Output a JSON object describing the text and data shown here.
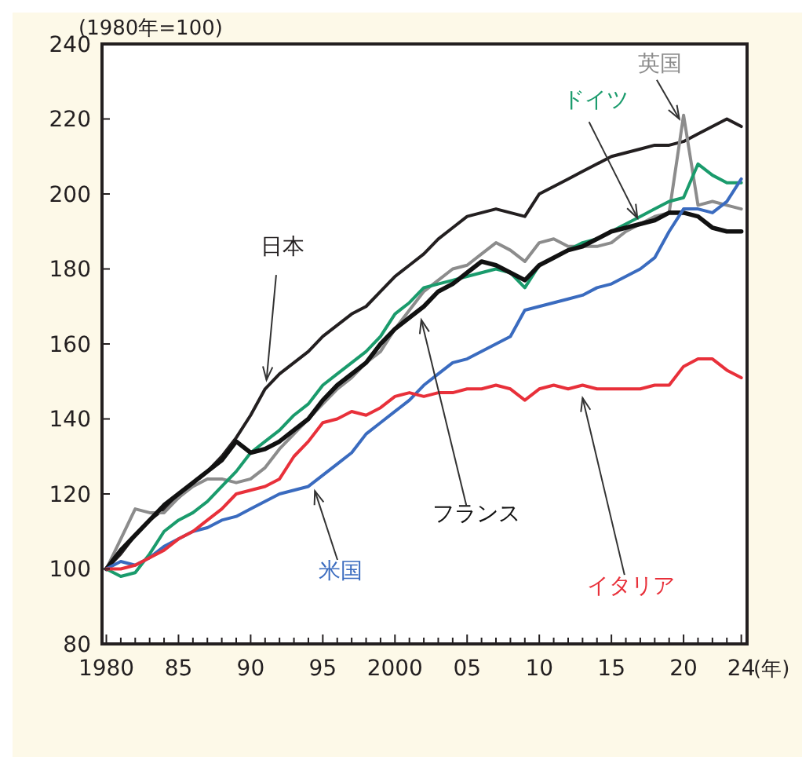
{
  "chart_data": {
    "type": "line",
    "ylabel": "(1980年=100)",
    "xlabel": "(年)",
    "x": [
      1980,
      1981,
      1982,
      1983,
      1984,
      1985,
      1986,
      1987,
      1988,
      1989,
      1990,
      1991,
      1992,
      1993,
      1994,
      1995,
      1996,
      1997,
      1998,
      1999,
      2000,
      2001,
      2002,
      2003,
      2004,
      2005,
      2006,
      2007,
      2008,
      2009,
      2010,
      2011,
      2012,
      2013,
      2014,
      2015,
      2016,
      2017,
      2018,
      2019,
      2020,
      2021,
      2022,
      2023,
      2024
    ],
    "xlim": [
      1979.7,
      2024.4
    ],
    "ylim": [
      80,
      240
    ],
    "xticks": [
      {
        "value": 1980,
        "label": "1980"
      },
      {
        "value": 1981,
        "label": null
      },
      {
        "value": 1982,
        "label": null
      },
      {
        "value": 1983,
        "label": null
      },
      {
        "value": 1984,
        "label": null
      },
      {
        "value": 1985,
        "label": "85"
      },
      {
        "value": 1986,
        "label": null
      },
      {
        "value": 1987,
        "label": null
      },
      {
        "value": 1988,
        "label": null
      },
      {
        "value": 1989,
        "label": null
      },
      {
        "value": 1990,
        "label": "90"
      },
      {
        "value": 1991,
        "label": null
      },
      {
        "value": 1992,
        "label": null
      },
      {
        "value": 1993,
        "label": null
      },
      {
        "value": 1994,
        "label": null
      },
      {
        "value": 1995,
        "label": "95"
      },
      {
        "value": 1996,
        "label": null
      },
      {
        "value": 1997,
        "label": null
      },
      {
        "value": 1998,
        "label": null
      },
      {
        "value": 1999,
        "label": null
      },
      {
        "value": 2000,
        "label": "2000"
      },
      {
        "value": 2001,
        "label": null
      },
      {
        "value": 2002,
        "label": null
      },
      {
        "value": 2003,
        "label": null
      },
      {
        "value": 2004,
        "label": null
      },
      {
        "value": 2005,
        "label": "05"
      },
      {
        "value": 2006,
        "label": null
      },
      {
        "value": 2007,
        "label": null
      },
      {
        "value": 2008,
        "label": null
      },
      {
        "value": 2009,
        "label": null
      },
      {
        "value": 2010,
        "label": "10"
      },
      {
        "value": 2011,
        "label": null
      },
      {
        "value": 2012,
        "label": null
      },
      {
        "value": 2013,
        "label": null
      },
      {
        "value": 2014,
        "label": null
      },
      {
        "value": 2015,
        "label": "15"
      },
      {
        "value": 2016,
        "label": null
      },
      {
        "value": 2017,
        "label": null
      },
      {
        "value": 2018,
        "label": null
      },
      {
        "value": 2019,
        "label": null
      },
      {
        "value": 2020,
        "label": "20"
      },
      {
        "value": 2021,
        "label": null
      },
      {
        "value": 2022,
        "label": null
      },
      {
        "value": 2023,
        "label": null
      },
      {
        "value": 2024,
        "label": "24"
      }
    ],
    "yticks": [
      80,
      100,
      120,
      140,
      160,
      180,
      200,
      220,
      240
    ],
    "grid": false,
    "legend": false,
    "series": [
      {
        "name": "日本",
        "color": "#231f20",
        "values": [
          100,
          104,
          109,
          113,
          116,
          119,
          123,
          126,
          130,
          135,
          141,
          148,
          152,
          155,
          158,
          162,
          165,
          168,
          170,
          174,
          178,
          181,
          184,
          188,
          191,
          194,
          195,
          196,
          195,
          194,
          200,
          202,
          204,
          206,
          208,
          210,
          211,
          212,
          213,
          213,
          214,
          216,
          218,
          220,
          218
        ]
      },
      {
        "name": "英国",
        "color": "#8c8c8c",
        "values": [
          100,
          108,
          116,
          115,
          115,
          119,
          122,
          124,
          124,
          123,
          124,
          127,
          132,
          136,
          140,
          144,
          148,
          151,
          155,
          158,
          164,
          169,
          174,
          177,
          180,
          181,
          184,
          187,
          185,
          182,
          187,
          188,
          186,
          186,
          186,
          187,
          190,
          192,
          194,
          195,
          221,
          197,
          198,
          197,
          196
        ]
      },
      {
        "name": "ドイツ",
        "color": "#1a9b6c",
        "values": [
          100,
          98,
          99,
          104,
          110,
          113,
          115,
          118,
          122,
          126,
          131,
          134,
          137,
          141,
          144,
          149,
          152,
          155,
          158,
          162,
          168,
          171,
          175,
          176,
          177,
          178,
          179,
          180,
          179,
          175,
          181,
          183,
          185,
          187,
          188,
          190,
          192,
          194,
          196,
          198,
          199,
          208,
          205,
          203,
          203
        ]
      },
      {
        "name": "フランス",
        "color": "#111111",
        "values": [
          100,
          105,
          109,
          113,
          117,
          120,
          123,
          126,
          129,
          134,
          131,
          132,
          134,
          137,
          140,
          145,
          149,
          152,
          155,
          160,
          164,
          167,
          170,
          174,
          176,
          179,
          182,
          181,
          179,
          177,
          181,
          183,
          185,
          186,
          188,
          190,
          191,
          192,
          193,
          195,
          195,
          194,
          191,
          190,
          190
        ]
      },
      {
        "name": "米国",
        "color": "#3a6bbf",
        "values": [
          100,
          102,
          101,
          103,
          106,
          108,
          110,
          111,
          113,
          114,
          116,
          118,
          120,
          121,
          122,
          125,
          128,
          131,
          136,
          139,
          142,
          145,
          149,
          152,
          155,
          156,
          158,
          160,
          162,
          169,
          170,
          171,
          172,
          173,
          175,
          176,
          178,
          180,
          183,
          190,
          196,
          196,
          195,
          198,
          204
        ]
      },
      {
        "name": "イタリア",
        "color": "#e8303a",
        "values": [
          100,
          100,
          101,
          103,
          105,
          108,
          110,
          113,
          116,
          120,
          121,
          122,
          124,
          130,
          134,
          139,
          140,
          142,
          141,
          143,
          146,
          147,
          146,
          147,
          147,
          148,
          148,
          149,
          148,
          145,
          148,
          149,
          148,
          149,
          148,
          148,
          148,
          148,
          149,
          149,
          154,
          156,
          156,
          153,
          151
        ]
      }
    ]
  }
}
